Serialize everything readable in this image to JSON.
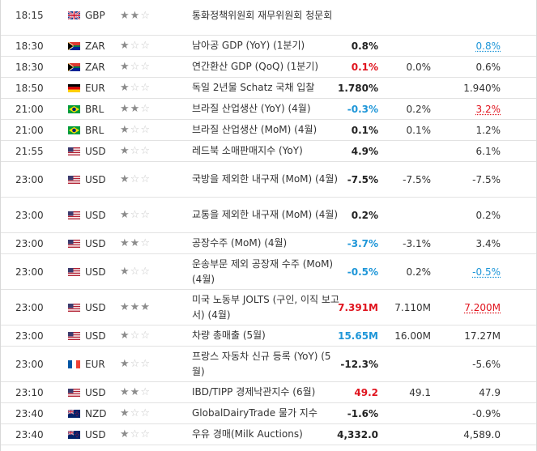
{
  "rows": [
    {
      "time": "18:15",
      "flag": "gb",
      "currency": "GBP",
      "stars": 2,
      "event": "통화정책위원회 재무위원회 청문회",
      "actual": "",
      "actual_color": "black",
      "forecast": "",
      "previous": "",
      "previous_color": "black"
    },
    {
      "time": "18:30",
      "flag": "za",
      "currency": "ZAR",
      "stars": 1,
      "event": "남아공 GDP (YoY) (1분기)",
      "actual": "0.8%",
      "actual_color": "black",
      "forecast": "",
      "previous": "0.8%",
      "previous_color": "blue"
    },
    {
      "time": "18:30",
      "flag": "za",
      "currency": "ZAR",
      "stars": 1,
      "event": "연간환산 GDP (QoQ) (1분기)",
      "actual": "0.1%",
      "actual_color": "red",
      "forecast": "0.0%",
      "previous": "0.6%",
      "previous_color": "black"
    },
    {
      "time": "18:50",
      "flag": "de",
      "currency": "EUR",
      "stars": 1,
      "event": "독일 2년물 Schatz 국채 입찰",
      "actual": "1.780%",
      "actual_color": "black",
      "forecast": "",
      "previous": "1.940%",
      "previous_color": "black"
    },
    {
      "time": "21:00",
      "flag": "br",
      "currency": "BRL",
      "stars": 2,
      "event": "브라질 산업생산 (YoY) (4월)",
      "actual": "-0.3%",
      "actual_color": "blue",
      "forecast": "0.2%",
      "previous": "3.2%",
      "previous_color": "red"
    },
    {
      "time": "21:00",
      "flag": "br",
      "currency": "BRL",
      "stars": 1,
      "event": "브라질 산업생산 (MoM) (4월)",
      "actual": "0.1%",
      "actual_color": "black",
      "forecast": "0.1%",
      "previous": "1.2%",
      "previous_color": "black"
    },
    {
      "time": "21:55",
      "flag": "us",
      "currency": "USD",
      "stars": 1,
      "event": "레드북 소매판매지수 (YoY)",
      "actual": "4.9%",
      "actual_color": "black",
      "forecast": "",
      "previous": "6.1%",
      "previous_color": "black"
    },
    {
      "time": "23:00",
      "flag": "us",
      "currency": "USD",
      "stars": 1,
      "event": "국방을 제외한 내구재 (MoM) (4월)",
      "actual": "-7.5%",
      "actual_color": "black",
      "forecast": "-7.5%",
      "previous": "-7.5%",
      "previous_color": "black"
    },
    {
      "time": "23:00",
      "flag": "us",
      "currency": "USD",
      "stars": 1,
      "event": "교통을 제외한 내구재 (MoM) (4월)",
      "actual": "0.2%",
      "actual_color": "black",
      "forecast": "",
      "previous": "0.2%",
      "previous_color": "black"
    },
    {
      "time": "23:00",
      "flag": "us",
      "currency": "USD",
      "stars": 2,
      "event": "공장수주 (MoM) (4월)",
      "actual": "-3.7%",
      "actual_color": "blue",
      "forecast": "-3.1%",
      "previous": "3.4%",
      "previous_color": "black"
    },
    {
      "time": "23:00",
      "flag": "us",
      "currency": "USD",
      "stars": 1,
      "event": "운송부문 제외 공장재 수주 (MoM) (4월)",
      "actual": "-0.5%",
      "actual_color": "blue",
      "forecast": "0.2%",
      "previous": "-0.5%",
      "previous_color": "blue"
    },
    {
      "time": "23:00",
      "flag": "us",
      "currency": "USD",
      "stars": 3,
      "event": "미국 노동부 JOLTS (구인, 이직 보고서) (4월)",
      "actual": "7.391M",
      "actual_color": "red",
      "forecast": "7.110M",
      "previous": "7.200M",
      "previous_color": "red"
    },
    {
      "time": "23:00",
      "flag": "us",
      "currency": "USD",
      "stars": 1,
      "event": "차량 총매출 (5월)",
      "actual": "15.65M",
      "actual_color": "blue",
      "forecast": "16.00M",
      "previous": "17.27M",
      "previous_color": "black"
    },
    {
      "time": "23:00",
      "flag": "fr",
      "currency": "EUR",
      "stars": 1,
      "event": "프랑스 자동차 신규 등록 (YoY) (5월)",
      "actual": "-12.3%",
      "actual_color": "black",
      "forecast": "",
      "previous": "-5.6%",
      "previous_color": "black"
    },
    {
      "time": "23:10",
      "flag": "us",
      "currency": "USD",
      "stars": 2,
      "event": "IBD/TIPP 경제낙관지수 (6월)",
      "actual": "49.2",
      "actual_color": "red",
      "forecast": "49.1",
      "previous": "47.9",
      "previous_color": "black"
    },
    {
      "time": "23:40",
      "flag": "nz",
      "currency": "NZD",
      "stars": 1,
      "event": "GlobalDairyTrade 물가 지수",
      "actual": "-1.6%",
      "actual_color": "black",
      "forecast": "",
      "previous": "-0.9%",
      "previous_color": "black"
    },
    {
      "time": "23:40",
      "flag": "nz",
      "currency": "USD",
      "stars": 1,
      "event": "우유 경매(Milk Auctions)",
      "actual": "4,332.0",
      "actual_color": "black",
      "forecast": "",
      "previous": "4,589.0",
      "previous_color": "black"
    }
  ]
}
